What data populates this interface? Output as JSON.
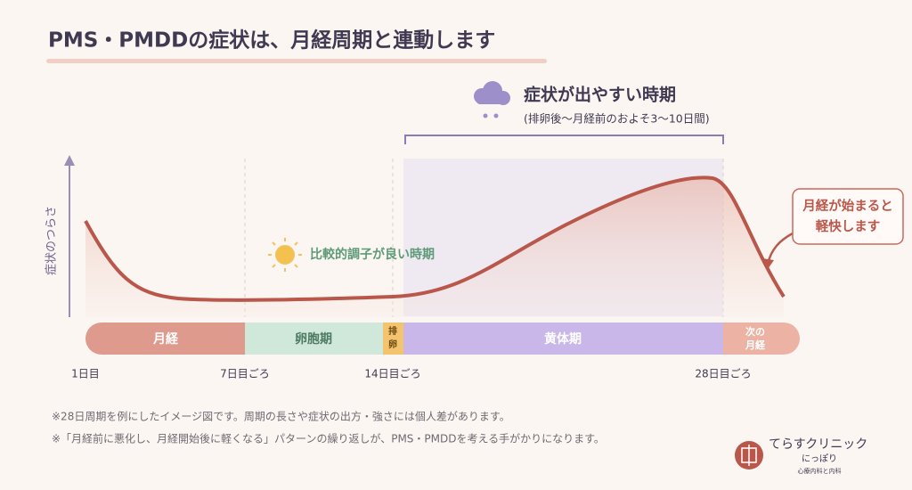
{
  "header": {
    "title": "PMS・PMDDの症状は、月経周期と連動します"
  },
  "highlight": {
    "title": "症状が出やすい時期",
    "subtitle": "(排卵後〜月経前のおよそ3〜10日間)"
  },
  "axis": {
    "y_label": "症状のつらさ"
  },
  "good_period": {
    "label": "比較的調子が良い時期"
  },
  "callout": {
    "lines": [
      "月経が始まると",
      "軽快します"
    ]
  },
  "phases": [
    {
      "label": "月経"
    },
    {
      "label": "卵胞期"
    },
    {
      "label": "排卵",
      "lines": [
        "排",
        "卵"
      ]
    },
    {
      "label": "黄体期"
    },
    {
      "label": "次の月経",
      "lines": [
        "次の",
        "月経"
      ]
    }
  ],
  "days": [
    "1日目",
    "7日目ごろ",
    "14日目ごろ",
    "28日目ごろ"
  ],
  "notes": [
    "※28日周期を例にしたイメージ図です。周期の長さや症状の出方・強さには個人差があります。",
    "※「月経前に悪化し、月経開始後に軽くなる」パターンの繰り返しが、PMS・PMDDを考える手がかりになります。"
  ],
  "logo": {
    "name": "てらすクリニック",
    "sub": "にっぽり",
    "tagline": "心療内科と内科"
  }
}
